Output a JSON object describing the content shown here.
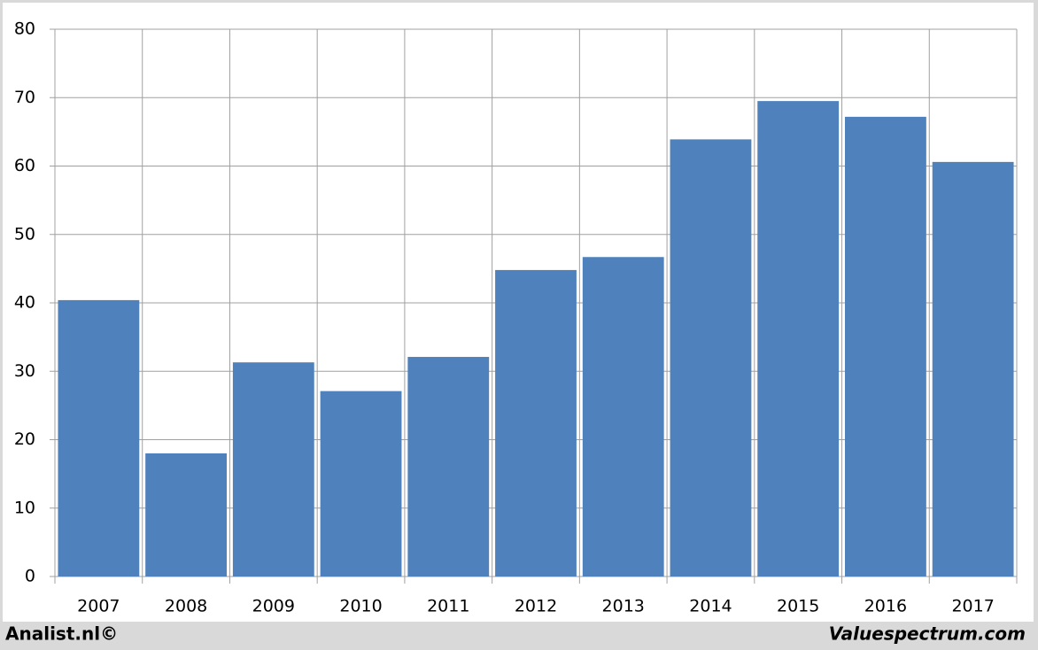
{
  "chart_data": {
    "type": "bar",
    "categories": [
      "2007",
      "2008",
      "2009",
      "2010",
      "2011",
      "2012",
      "2013",
      "2014",
      "2015",
      "2016",
      "2017"
    ],
    "values": [
      40.4,
      18.0,
      31.3,
      27.1,
      32.1,
      44.8,
      46.7,
      63.9,
      69.5,
      67.2,
      60.6
    ],
    "color": "#4f81bd",
    "ylim": [
      0,
      80
    ],
    "yticks": [
      0,
      10,
      20,
      30,
      40,
      50,
      60,
      70,
      80
    ],
    "grid": true
  },
  "footer": {
    "left": "Analist.nl©",
    "right": "Valuespectrum.com"
  }
}
